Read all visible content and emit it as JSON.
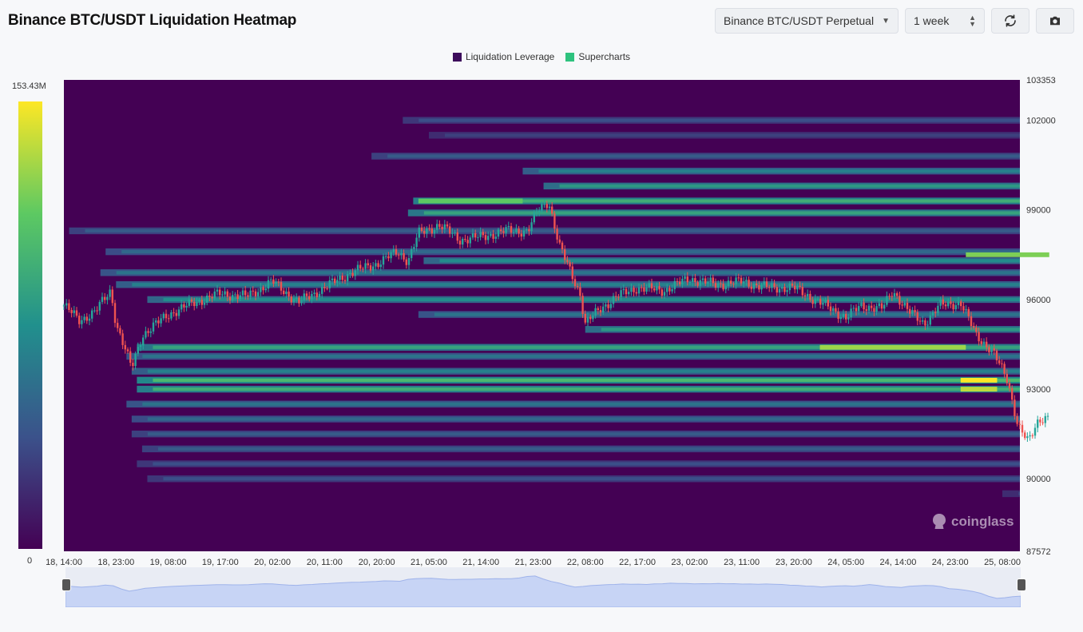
{
  "header": {
    "title": "Binance BTC/USDT Liquidation Heatmap",
    "pair_select": "Binance BTC/USDT Perpetual",
    "range_select": "1 week"
  },
  "icons": {
    "refresh": "refresh-icon",
    "camera": "camera-icon",
    "dropdown": "chevron-down-icon"
  },
  "watermark": "coinglass",
  "colors": {
    "low": "#440154",
    "mid": "#21908d",
    "high": "#fde725",
    "candle_up": "#26a69a",
    "candle_down": "#ef5350",
    "navigator_fill": "#c7d4f5"
  },
  "chart_data": {
    "type": "heatmap",
    "title": "Binance BTC/USDT Liquidation Heatmap",
    "legend": [
      {
        "name": "Liquidation Leverage",
        "color": "#3d0d5c"
      },
      {
        "name": "Supercharts",
        "color": "#2ec27e"
      }
    ],
    "legend_position": "top-center",
    "colorscale": {
      "min_label": "0",
      "max_label": "153.43M",
      "min": 0,
      "max": 153430000
    },
    "x_ticks": [
      "18, 14:00",
      "18, 23:00",
      "19, 08:00",
      "19, 17:00",
      "20, 02:00",
      "20, 11:00",
      "20, 20:00",
      "21, 05:00",
      "21, 14:00",
      "21, 23:00",
      "22, 08:00",
      "22, 17:00",
      "23, 02:00",
      "23, 11:00",
      "23, 20:00",
      "24, 05:00",
      "24, 14:00",
      "24, 23:00",
      "25, 08:00"
    ],
    "y_ticks": [
      103353,
      102000,
      99000,
      96000,
      93000,
      90000,
      87572
    ],
    "y_tick_labels": [
      "103353",
      "102000",
      "99000",
      "96000",
      "93000",
      "90000",
      "87572"
    ],
    "ylim": [
      87572,
      103353
    ],
    "price_path": [
      {
        "x": 0.0,
        "y": 95800
      },
      {
        "x": 0.3,
        "y": 95300
      },
      {
        "x": 0.6,
        "y": 95600
      },
      {
        "x": 0.9,
        "y": 96300
      },
      {
        "x": 1.0,
        "y": 95200
      },
      {
        "x": 1.3,
        "y": 93700
      },
      {
        "x": 1.5,
        "y": 94800
      },
      {
        "x": 2.0,
        "y": 95500
      },
      {
        "x": 2.5,
        "y": 95900
      },
      {
        "x": 3.0,
        "y": 96200
      },
      {
        "x": 3.5,
        "y": 96100
      },
      {
        "x": 4.0,
        "y": 96600
      },
      {
        "x": 4.5,
        "y": 95900
      },
      {
        "x": 5.0,
        "y": 96400
      },
      {
        "x": 5.5,
        "y": 96900
      },
      {
        "x": 6.0,
        "y": 97200
      },
      {
        "x": 6.4,
        "y": 97600
      },
      {
        "x": 6.6,
        "y": 97300
      },
      {
        "x": 6.8,
        "y": 98200
      },
      {
        "x": 7.2,
        "y": 98500
      },
      {
        "x": 7.6,
        "y": 98000
      },
      {
        "x": 8.0,
        "y": 98100
      },
      {
        "x": 8.5,
        "y": 98300
      },
      {
        "x": 8.9,
        "y": 98300
      },
      {
        "x": 9.1,
        "y": 99000
      },
      {
        "x": 9.3,
        "y": 99300
      },
      {
        "x": 9.5,
        "y": 97800
      },
      {
        "x": 9.7,
        "y": 97000
      },
      {
        "x": 9.9,
        "y": 96200
      },
      {
        "x": 10.0,
        "y": 95200
      },
      {
        "x": 10.3,
        "y": 95700
      },
      {
        "x": 10.6,
        "y": 96100
      },
      {
        "x": 11.0,
        "y": 96400
      },
      {
        "x": 11.5,
        "y": 96300
      },
      {
        "x": 12.0,
        "y": 96700
      },
      {
        "x": 12.5,
        "y": 96500
      },
      {
        "x": 13.0,
        "y": 96600
      },
      {
        "x": 13.5,
        "y": 96400
      },
      {
        "x": 14.0,
        "y": 96400
      },
      {
        "x": 14.5,
        "y": 95900
      },
      {
        "x": 15.0,
        "y": 95400
      },
      {
        "x": 15.3,
        "y": 95800
      },
      {
        "x": 15.7,
        "y": 95700
      },
      {
        "x": 15.9,
        "y": 96300
      },
      {
        "x": 16.2,
        "y": 95600
      },
      {
        "x": 16.5,
        "y": 95200
      },
      {
        "x": 16.8,
        "y": 95800
      },
      {
        "x": 17.2,
        "y": 95900
      },
      {
        "x": 17.5,
        "y": 94800
      },
      {
        "x": 17.8,
        "y": 94300
      },
      {
        "x": 18.1,
        "y": 93300
      },
      {
        "x": 18.3,
        "y": 91800
      },
      {
        "x": 18.5,
        "y": 91200
      },
      {
        "x": 18.7,
        "y": 92000
      },
      {
        "x": 18.9,
        "y": 92100
      }
    ],
    "bands": [
      {
        "y": 102000,
        "x_from": 6.5,
        "intensity": 0.25
      },
      {
        "y": 101500,
        "x_from": 7.0,
        "intensity": 0.2
      },
      {
        "y": 100800,
        "x_from": 5.9,
        "intensity": 0.3
      },
      {
        "y": 100300,
        "x_from": 8.8,
        "intensity": 0.45
      },
      {
        "y": 99800,
        "x_from": 9.2,
        "intensity": 0.55
      },
      {
        "y": 99300,
        "x_from": 6.7,
        "intensity": 0.65
      },
      {
        "y": 98900,
        "x_from": 6.6,
        "intensity": 0.6
      },
      {
        "y": 98300,
        "x_from": 0.1,
        "intensity": 0.3
      },
      {
        "y": 97600,
        "x_from": 0.8,
        "intensity": 0.35
      },
      {
        "y": 97300,
        "x_from": 6.9,
        "intensity": 0.5
      },
      {
        "y": 96900,
        "x_from": 0.7,
        "intensity": 0.4
      },
      {
        "y": 96500,
        "x_from": 1.0,
        "intensity": 0.45
      },
      {
        "y": 96000,
        "x_from": 1.6,
        "intensity": 0.5
      },
      {
        "y": 95500,
        "x_from": 6.8,
        "intensity": 0.4
      },
      {
        "y": 95000,
        "x_from": 10.0,
        "intensity": 0.55
      },
      {
        "y": 94400,
        "x_from": 1.4,
        "intensity": 0.6
      },
      {
        "y": 94100,
        "x_from": 1.2,
        "intensity": 0.4
      },
      {
        "y": 93600,
        "x_from": 1.3,
        "intensity": 0.45
      },
      {
        "y": 93300,
        "x_from": 1.4,
        "intensity": 0.7
      },
      {
        "y": 93000,
        "x_from": 1.4,
        "intensity": 0.65
      },
      {
        "y": 92500,
        "x_from": 1.2,
        "intensity": 0.4
      },
      {
        "y": 92000,
        "x_from": 1.3,
        "intensity": 0.35
      },
      {
        "y": 91500,
        "x_from": 1.3,
        "intensity": 0.3
      },
      {
        "y": 91000,
        "x_from": 1.5,
        "intensity": 0.3
      },
      {
        "y": 90500,
        "x_from": 1.4,
        "intensity": 0.25
      },
      {
        "y": 90000,
        "x_from": 1.6,
        "intensity": 0.25
      },
      {
        "y": 89500,
        "x_from": 18.0,
        "intensity": 0.2
      }
    ],
    "hotspots": [
      {
        "y": 94400,
        "x_from": 14.5,
        "x_to": 17.3,
        "intensity": 0.85
      },
      {
        "y": 93300,
        "x_from": 17.2,
        "x_to": 17.9,
        "intensity": 1.0
      },
      {
        "y": 93000,
        "x_from": 17.2,
        "x_to": 17.9,
        "intensity": 0.9
      },
      {
        "y": 99300,
        "x_from": 6.8,
        "x_to": 8.8,
        "intensity": 0.75
      },
      {
        "y": 97500,
        "x_from": 17.3,
        "x_to": 18.9,
        "intensity": 0.8
      }
    ]
  }
}
